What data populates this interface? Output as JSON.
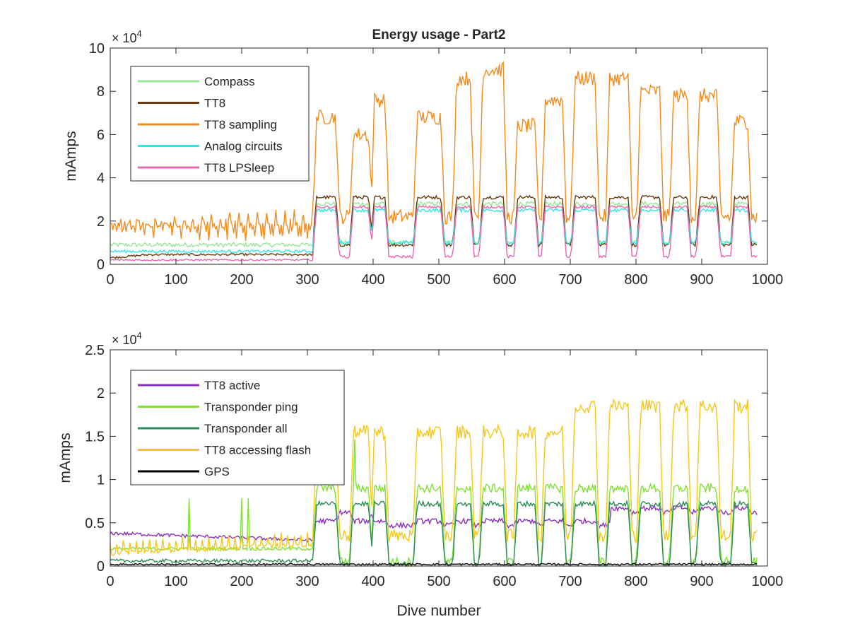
{
  "figure": {
    "title": "Energy usage - Part2"
  },
  "chart_data": [
    {
      "type": "line",
      "title": "Energy usage - Part2",
      "xlabel": "",
      "ylabel": "mAmps",
      "xlim": [
        0,
        1000
      ],
      "ylim": [
        0,
        10
      ],
      "y_multiplier": "× 10^4",
      "y_multiplier_base": "× 10",
      "y_multiplier_exp": "4",
      "x_ticks": [
        "0",
        "100",
        "200",
        "300",
        "400",
        "500",
        "600",
        "700",
        "800",
        "900",
        "1000"
      ],
      "y_ticks": [
        "0",
        "2",
        "4",
        "6",
        "8",
        "10"
      ],
      "grid": false,
      "legend_position": "top-left",
      "series": [
        {
          "name": "Compass",
          "color": "#98e698",
          "pattern": "compass"
        },
        {
          "name": "TT8",
          "color": "#6b3a0e",
          "pattern": "tt8"
        },
        {
          "name": "TT8 sampling",
          "color": "#f28c1c",
          "pattern": "tt8_sampling"
        },
        {
          "name": "Analog circuits",
          "color": "#33e6e6",
          "pattern": "analog"
        },
        {
          "name": "TT8 LPSleep",
          "color": "#e667b3",
          "pattern": "lpsleep"
        }
      ]
    },
    {
      "type": "line",
      "title": "",
      "xlabel": "Dive number",
      "ylabel": "mAmps",
      "xlim": [
        0,
        1000
      ],
      "ylim": [
        0,
        2.5
      ],
      "y_multiplier": "× 10^4",
      "y_multiplier_base": "× 10",
      "y_multiplier_exp": "4",
      "x_ticks": [
        "0",
        "100",
        "200",
        "300",
        "400",
        "500",
        "600",
        "700",
        "800",
        "900",
        "1000"
      ],
      "y_ticks": [
        "0",
        "0.5",
        "1",
        "1.5",
        "2",
        "2.5"
      ],
      "grid": false,
      "legend_position": "top-left",
      "series": [
        {
          "name": "TT8 active",
          "color": "#8a2fbd",
          "pattern": "tt8_active"
        },
        {
          "name": "Transponder ping",
          "color": "#80e033",
          "pattern": "ping"
        },
        {
          "name": "Transponder all",
          "color": "#2e8b57",
          "pattern": "tr_all"
        },
        {
          "name": "TT8 accessing flash",
          "color": "#f5c71a",
          "pattern": "flash"
        },
        {
          "name": "GPS",
          "color": "#000000",
          "pattern": "gps"
        }
      ]
    }
  ]
}
